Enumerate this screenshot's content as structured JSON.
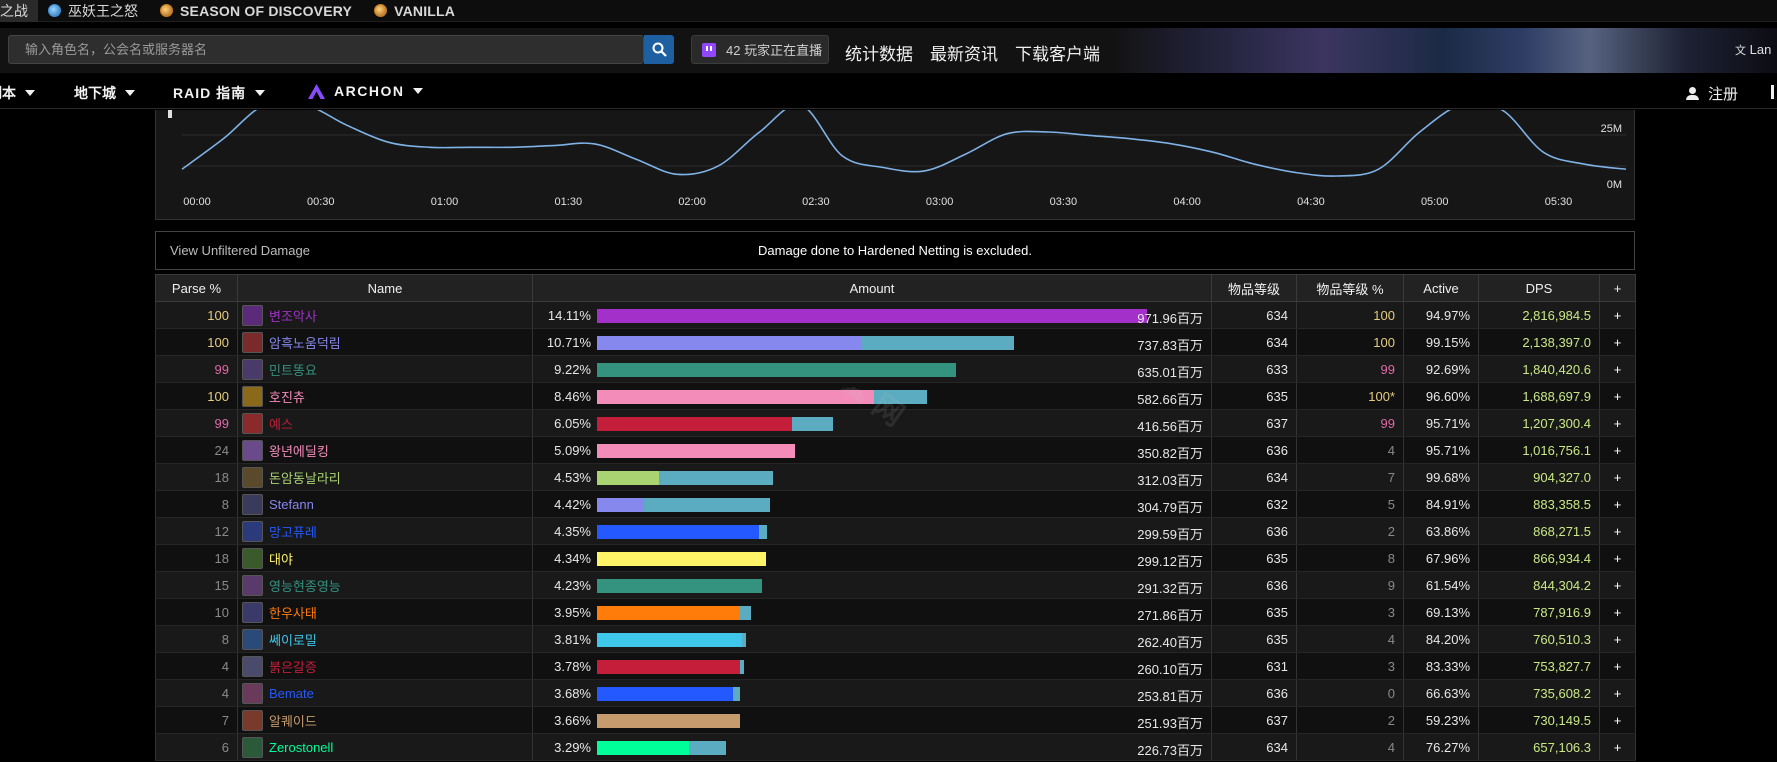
{
  "topbar": {
    "products": [
      {
        "label": "之战",
        "active": true,
        "badge": "gold"
      },
      {
        "label": "巫妖王之怒",
        "badge": "blue"
      },
      {
        "label": "SEASON OF DISCOVERY",
        "badge": "gold"
      },
      {
        "label": "VANILLA",
        "badge": "gold"
      }
    ]
  },
  "search": {
    "placeholder": "输入角色名，公会名或服务器名",
    "live_label": "42 玩家正在直播",
    "links": [
      "统计数据",
      "最新资讯",
      "下载客户端"
    ],
    "lang_label": "Lan"
  },
  "nav": {
    "items": [
      "副本",
      "地下城",
      "RAID 指南",
      "ARCHON"
    ],
    "login": "注册"
  },
  "chart_data": {
    "type": "line",
    "x_ticks": [
      "00:00",
      "00:30",
      "01:00",
      "01:30",
      "02:00",
      "02:30",
      "03:00",
      "03:30",
      "04:00",
      "04:30",
      "05:00",
      "05:30"
    ],
    "y_ticks": [
      "25M",
      "0M"
    ],
    "line_color": "#7fb2e6",
    "x": [
      0,
      10,
      20,
      30,
      40,
      50,
      60,
      70,
      80,
      90,
      100,
      110,
      120,
      130,
      140,
      150,
      160,
      170,
      180,
      190,
      200,
      210,
      220,
      230,
      240,
      250,
      260,
      270,
      280,
      290,
      300,
      310,
      320,
      330,
      340,
      350
    ],
    "y": [
      4,
      22,
      42,
      42,
      30,
      20,
      17,
      17,
      17,
      18,
      19,
      10,
      1,
      6,
      26,
      42,
      12,
      5,
      3,
      13,
      25,
      26,
      24,
      22,
      19,
      14,
      7,
      2,
      0,
      4,
      26,
      42,
      39,
      14,
      7,
      4
    ]
  },
  "notice": {
    "unfiltered": "View Unfiltered Damage",
    "excluded": "Damage done to Hardened Netting is excluded."
  },
  "table": {
    "headers": [
      "Parse %",
      "Name",
      "Amount",
      "物品等级",
      "物品等级 %",
      "Active",
      "DPS",
      "+"
    ],
    "rows": [
      {
        "parse": "100",
        "pc": "gold",
        "name": "변조악사",
        "color": "#a330c9",
        "icon": "#5b2a7a",
        "pct": "14.11%",
        "amount": "971.96百万",
        "b1": 14.11,
        "b2": 0,
        "c1": "#a330c9",
        "ilvl": "634",
        "ilvlp": "100",
        "ipc": "gold",
        "active": "94.97%",
        "dps": "2,816,984.5"
      },
      {
        "parse": "100",
        "pc": "gold",
        "name": "암흑노움덕림",
        "color": "#8788ee",
        "icon": "#7a2a2a",
        "pct": "10.71%",
        "amount": "737.83百万",
        "b1": 6.8,
        "b2": 3.91,
        "c1": "#8788ee",
        "ilvl": "634",
        "ilvlp": "100",
        "ipc": "gold",
        "active": "99.15%",
        "dps": "2,138,397.0"
      },
      {
        "parse": "99",
        "pc": "pink",
        "name": "민트똥요",
        "color": "#33937f",
        "icon": "#4a3a6a",
        "pct": "9.22%",
        "amount": "635.01百万",
        "b1": 9.22,
        "b2": 0,
        "c1": "#33937f",
        "ilvl": "633",
        "ilvlp": "99",
        "ipc": "pink",
        "active": "92.69%",
        "dps": "1,840,420.6"
      },
      {
        "parse": "100",
        "pc": "gold",
        "name": "호진츄",
        "color": "#f48cba",
        "icon": "#8a6a1a",
        "pct": "8.46%",
        "amount": "582.66百万",
        "b1": 7.1,
        "b2": 1.36,
        "c1": "#f48cba",
        "ilvl": "635",
        "ilvlp": "100*",
        "ipc": "gold",
        "active": "96.60%",
        "dps": "1,688,697.9"
      },
      {
        "parse": "99",
        "pc": "pink",
        "name": "예스",
        "color": "#c41e3a",
        "icon": "#8a2a2a",
        "pct": "6.05%",
        "amount": "416.56百万",
        "b1": 5.0,
        "b2": 1.05,
        "c1": "#c41e3a",
        "ilvl": "637",
        "ilvlp": "99",
        "ipc": "pink",
        "active": "95.71%",
        "dps": "1,207,300.4"
      },
      {
        "parse": "24",
        "pc": "grey",
        "name": "왕년에딜킹",
        "color": "#f48cba",
        "icon": "#6a4a8a",
        "pct": "5.09%",
        "amount": "350.82百万",
        "b1": 5.09,
        "b2": 0,
        "c1": "#f48cba",
        "ilvl": "636",
        "ilvlp": "4",
        "ipc": "grey",
        "active": "95.71%",
        "dps": "1,016,756.1"
      },
      {
        "parse": "18",
        "pc": "grey",
        "name": "돈암동날라리",
        "color": "#aad372",
        "icon": "#5a4a2a",
        "pct": "4.53%",
        "amount": "312.03百万",
        "b1": 1.6,
        "b2": 2.93,
        "c1": "#aad372",
        "ilvl": "634",
        "ilvlp": "7",
        "ipc": "grey",
        "active": "99.68%",
        "dps": "904,327.0"
      },
      {
        "parse": "8",
        "pc": "grey",
        "name": "Stefann",
        "color": "#8788ee",
        "icon": "#3a3a5a",
        "pct": "4.42%",
        "amount": "304.79百万",
        "b1": 1.2,
        "b2": 3.22,
        "c1": "#8788ee",
        "ilvl": "632",
        "ilvlp": "5",
        "ipc": "grey",
        "active": "84.91%",
        "dps": "883,358.5"
      },
      {
        "parse": "12",
        "pc": "grey",
        "name": "망고퓨레",
        "color": "#2459ff",
        "icon": "#2a3a7a",
        "pct": "4.35%",
        "amount": "299.59百万",
        "b1": 4.15,
        "b2": 0.2,
        "c1": "#2459ff",
        "ilvl": "636",
        "ilvlp": "2",
        "ipc": "grey",
        "active": "63.86%",
        "dps": "868,271.5"
      },
      {
        "parse": "18",
        "pc": "grey",
        "name": "대야",
        "color": "#fff468",
        "icon": "#3a5a2a",
        "pct": "4.34%",
        "amount": "299.12百万",
        "b1": 4.34,
        "b2": 0,
        "c1": "#fff468",
        "ilvl": "635",
        "ilvlp": "8",
        "ipc": "grey",
        "active": "67.96%",
        "dps": "866,934.4"
      },
      {
        "parse": "15",
        "pc": "grey",
        "name": "영능현종영능",
        "color": "#33937f",
        "icon": "#5a3a6a",
        "pct": "4.23%",
        "amount": "291.32百万",
        "b1": 4.23,
        "b2": 0,
        "c1": "#33937f",
        "ilvl": "636",
        "ilvlp": "9",
        "ipc": "grey",
        "active": "61.54%",
        "dps": "844,304.2"
      },
      {
        "parse": "10",
        "pc": "grey",
        "name": "한우사태",
        "color": "#ff7c0a",
        "icon": "#3a3a6a",
        "pct": "3.95%",
        "amount": "271.86百万",
        "b1": 3.65,
        "b2": 0.3,
        "c1": "#ff7c0a",
        "ilvl": "635",
        "ilvlp": "3",
        "ipc": "grey",
        "active": "69.13%",
        "dps": "787,916.9"
      },
      {
        "parse": "8",
        "pc": "grey",
        "name": "쎄이로밀",
        "color": "#3fc7eb",
        "icon": "#2a4a7a",
        "pct": "3.81%",
        "amount": "262.40百万",
        "b1": 3.71,
        "b2": 0.1,
        "c1": "#3fc7eb",
        "ilvl": "635",
        "ilvlp": "4",
        "ipc": "grey",
        "active": "84.20%",
        "dps": "760,510.3"
      },
      {
        "parse": "4",
        "pc": "grey",
        "name": "붉은갈증",
        "color": "#c41e3a",
        "icon": "#4a4a6a",
        "pct": "3.78%",
        "amount": "260.10百万",
        "b1": 3.68,
        "b2": 0.1,
        "c1": "#c41e3a",
        "ilvl": "631",
        "ilvlp": "3",
        "ipc": "grey",
        "active": "83.33%",
        "dps": "753,827.7"
      },
      {
        "parse": "4",
        "pc": "grey",
        "name": "Bemate",
        "color": "#2459ff",
        "icon": "#6a3a5a",
        "pct": "3.68%",
        "amount": "253.81百万",
        "b1": 3.5,
        "b2": 0.18,
        "c1": "#2459ff",
        "ilvl": "636",
        "ilvlp": "0",
        "ipc": "grey",
        "active": "66.63%",
        "dps": "735,608.2"
      },
      {
        "parse": "7",
        "pc": "grey",
        "name": "알퀘이드",
        "color": "#c69b6d",
        "icon": "#7a3a2a",
        "pct": "3.66%",
        "amount": "251.93百万",
        "b1": 3.66,
        "b2": 0,
        "c1": "#c69b6d",
        "ilvl": "637",
        "ilvlp": "2",
        "ipc": "grey",
        "active": "59.23%",
        "dps": "730,149.5"
      },
      {
        "parse": "6",
        "pc": "grey",
        "name": "Zerostonell",
        "color": "#00ff98",
        "icon": "#2a5a3a",
        "pct": "3.29%",
        "amount": "226.73百万",
        "b1": 2.35,
        "b2": 0.94,
        "c1": "#00ff98",
        "ilvl": "634",
        "ilvlp": "4",
        "ipc": "grey",
        "active": "76.27%",
        "dps": "657,106.3"
      }
    ],
    "second_bar_color": "#5bacc0",
    "max_pct": 14.11
  }
}
